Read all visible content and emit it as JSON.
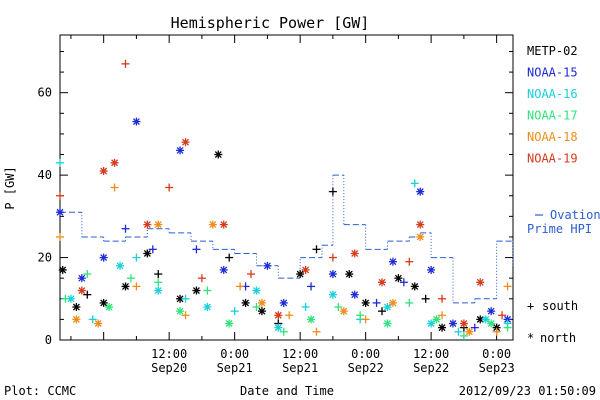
{
  "chart_data": {
    "type": "scatter",
    "title": "Hemispheric Power [GW]",
    "xlabel": "Date and Time",
    "ylabel": "P [GW]",
    "ylim": [
      0,
      74
    ],
    "xlim": [
      "2012-09-19T16:00",
      "2012-09-23T03:00"
    ],
    "yticks": [
      0,
      20,
      40,
      60
    ],
    "xticks": [
      {
        "line1": "12:00",
        "line2": "Sep20",
        "t": "2012-09-20T12:00"
      },
      {
        "line1": "0:00",
        "line2": "Sep21",
        "t": "2012-09-21T00:00"
      },
      {
        "line1": "12:00",
        "line2": "Sep21",
        "t": "2012-09-21T12:00"
      },
      {
        "line1": "0:00",
        "line2": "Sep22",
        "t": "2012-09-22T00:00"
      },
      {
        "line1": "12:00",
        "line2": "Sep22",
        "t": "2012-09-22T12:00"
      },
      {
        "line1": "0:00",
        "line2": "Sep23",
        "t": "2012-09-23T00:00"
      }
    ],
    "grid": false,
    "legend_position": "right",
    "ovation_label_1": "Ovation",
    "ovation_label_2": "Prime HPI",
    "symbol_south_label": "south",
    "symbol_north_label": "north",
    "footer_left": "Plot: CCMC",
    "footer_right": "2012/09/23 01:50:09",
    "series": [
      {
        "name": "METP-02",
        "color": "#000000",
        "points": [
          [
            "2012-09-19T16:30",
            17,
            "n"
          ],
          [
            "2012-09-19T19:00",
            8,
            "n"
          ],
          [
            "2012-09-19T21:00",
            11,
            "s"
          ],
          [
            "2012-09-20T00:00",
            9,
            "n"
          ],
          [
            "2012-09-20T04:00",
            13,
            "n"
          ],
          [
            "2012-09-20T08:00",
            21,
            "n"
          ],
          [
            "2012-09-20T10:00",
            16,
            "s"
          ],
          [
            "2012-09-20T14:00",
            10,
            "n"
          ],
          [
            "2012-09-20T17:00",
            12,
            "n"
          ],
          [
            "2012-09-20T21:00",
            45,
            "n"
          ],
          [
            "2012-09-20T23:00",
            20,
            "s"
          ],
          [
            "2012-09-21T02:00",
            9,
            "n"
          ],
          [
            "2012-09-21T05:00",
            7,
            "n"
          ],
          [
            "2012-09-21T08:00",
            4,
            "s"
          ],
          [
            "2012-09-21T12:00",
            16,
            "n"
          ],
          [
            "2012-09-21T15:00",
            22,
            "s"
          ],
          [
            "2012-09-21T18:00",
            36,
            "s"
          ],
          [
            "2012-09-21T21:00",
            16,
            "n"
          ],
          [
            "2012-09-22T00:00",
            9,
            "n"
          ],
          [
            "2012-09-22T03:00",
            7,
            "s"
          ],
          [
            "2012-09-22T06:00",
            15,
            "n"
          ],
          [
            "2012-09-22T09:00",
            13,
            "n"
          ],
          [
            "2012-09-22T11:00",
            10,
            "s"
          ],
          [
            "2012-09-22T14:00",
            3,
            "n"
          ],
          [
            "2012-09-22T18:00",
            3,
            "s"
          ],
          [
            "2012-09-22T21:00",
            5,
            "n"
          ],
          [
            "2012-09-23T00:00",
            3,
            "n"
          ]
        ]
      },
      {
        "name": "NOAA-15",
        "color": "#1d2bd6",
        "points": [
          [
            "2012-09-19T16:00",
            31,
            "n"
          ],
          [
            "2012-09-19T20:00",
            15,
            "n"
          ],
          [
            "2012-09-20T00:00",
            20,
            "n"
          ],
          [
            "2012-09-20T04:00",
            27,
            "s"
          ],
          [
            "2012-09-20T06:00",
            53,
            "n"
          ],
          [
            "2012-09-20T09:00",
            22,
            "s"
          ],
          [
            "2012-09-20T14:00",
            46,
            "n"
          ],
          [
            "2012-09-20T17:00",
            22,
            "s"
          ],
          [
            "2012-09-20T22:00",
            17,
            "n"
          ],
          [
            "2012-09-21T02:00",
            13,
            "s"
          ],
          [
            "2012-09-21T06:00",
            18,
            "n"
          ],
          [
            "2012-09-21T09:00",
            9,
            "n"
          ],
          [
            "2012-09-21T14:00",
            13,
            "s"
          ],
          [
            "2012-09-21T18:00",
            16,
            "n"
          ],
          [
            "2012-09-21T22:00",
            11,
            "n"
          ],
          [
            "2012-09-22T02:00",
            9,
            "s"
          ],
          [
            "2012-09-22T05:00",
            19,
            "n"
          ],
          [
            "2012-09-22T07:00",
            14,
            "s"
          ],
          [
            "2012-09-22T10:00",
            36,
            "n"
          ],
          [
            "2012-09-22T12:00",
            17,
            "n"
          ],
          [
            "2012-09-22T16:00",
            4,
            "n"
          ],
          [
            "2012-09-22T20:00",
            3,
            "s"
          ],
          [
            "2012-09-22T23:00",
            7,
            "n"
          ],
          [
            "2012-09-23T02:00",
            5,
            "n"
          ]
        ]
      },
      {
        "name": "NOAA-16",
        "color": "#19d0dd",
        "points": [
          [
            "2012-09-19T16:00",
            43,
            "s"
          ],
          [
            "2012-09-19T18:00",
            10,
            "n"
          ],
          [
            "2012-09-19T22:00",
            5,
            "s"
          ],
          [
            "2012-09-20T03:00",
            18,
            "n"
          ],
          [
            "2012-09-20T06:00",
            20,
            "s"
          ],
          [
            "2012-09-20T10:00",
            12,
            "n"
          ],
          [
            "2012-09-20T15:00",
            10,
            "s"
          ],
          [
            "2012-09-20T19:00",
            8,
            "n"
          ],
          [
            "2012-09-21T00:00",
            7,
            "s"
          ],
          [
            "2012-09-21T04:00",
            12,
            "n"
          ],
          [
            "2012-09-21T08:00",
            3,
            "n"
          ],
          [
            "2012-09-21T13:00",
            8,
            "s"
          ],
          [
            "2012-09-21T18:00",
            11,
            "n"
          ],
          [
            "2012-09-21T23:00",
            5,
            "s"
          ],
          [
            "2012-09-22T04:00",
            8,
            "n"
          ],
          [
            "2012-09-22T09:00",
            38,
            "s"
          ],
          [
            "2012-09-22T12:00",
            4,
            "n"
          ],
          [
            "2012-09-22T17:00",
            2,
            "s"
          ],
          [
            "2012-09-22T22:00",
            5,
            "n"
          ],
          [
            "2012-09-23T02:00",
            4,
            "s"
          ]
        ]
      },
      {
        "name": "NOAA-17",
        "color": "#2ee37a",
        "points": [
          [
            "2012-09-19T17:00",
            10,
            "s"
          ],
          [
            "2012-09-19T21:00",
            16,
            "s"
          ],
          [
            "2012-09-20T01:00",
            8,
            "n"
          ],
          [
            "2012-09-20T05:00",
            15,
            "s"
          ],
          [
            "2012-09-20T10:00",
            14,
            "s"
          ],
          [
            "2012-09-20T14:00",
            7,
            "n"
          ],
          [
            "2012-09-20T19:00",
            12,
            "s"
          ],
          [
            "2012-09-20T23:00",
            4,
            "n"
          ],
          [
            "2012-09-21T04:00",
            8,
            "s"
          ],
          [
            "2012-09-21T09:00",
            2,
            "s"
          ],
          [
            "2012-09-21T14:00",
            5,
            "n"
          ],
          [
            "2012-09-21T19:00",
            8,
            "s"
          ],
          [
            "2012-09-21T23:00",
            6,
            "s"
          ],
          [
            "2012-09-22T04:00",
            4,
            "n"
          ],
          [
            "2012-09-22T08:00",
            9,
            "s"
          ],
          [
            "2012-09-22T13:00",
            5,
            "n"
          ],
          [
            "2012-09-22T18:00",
            1,
            "s"
          ],
          [
            "2012-09-22T23:00",
            4,
            "n"
          ],
          [
            "2012-09-23T02:00",
            3,
            "s"
          ]
        ]
      },
      {
        "name": "NOAA-18",
        "color": "#f08c1a",
        "points": [
          [
            "2012-09-19T16:00",
            25,
            "s"
          ],
          [
            "2012-09-19T19:00",
            5,
            "n"
          ],
          [
            "2012-09-19T23:00",
            4,
            "n"
          ],
          [
            "2012-09-20T02:00",
            37,
            "s"
          ],
          [
            "2012-09-20T06:00",
            13,
            "s"
          ],
          [
            "2012-09-20T10:00",
            28,
            "n"
          ],
          [
            "2012-09-20T15:00",
            6,
            "s"
          ],
          [
            "2012-09-20T20:00",
            28,
            "n"
          ],
          [
            "2012-09-21T01:00",
            13,
            "s"
          ],
          [
            "2012-09-21T05:00",
            9,
            "n"
          ],
          [
            "2012-09-21T10:00",
            6,
            "s"
          ],
          [
            "2012-09-21T15:00",
            2,
            "s"
          ],
          [
            "2012-09-21T20:00",
            7,
            "n"
          ],
          [
            "2012-09-22T00:00",
            5,
            "s"
          ],
          [
            "2012-09-22T05:00",
            9,
            "n"
          ],
          [
            "2012-09-22T10:00",
            25,
            "n"
          ],
          [
            "2012-09-22T14:00",
            6,
            "s"
          ],
          [
            "2012-09-22T19:00",
            2,
            "n"
          ],
          [
            "2012-09-23T00:00",
            2,
            "s"
          ],
          [
            "2012-09-23T02:00",
            13,
            "s"
          ]
        ]
      },
      {
        "name": "NOAA-19",
        "color": "#d63a1c",
        "points": [
          [
            "2012-09-19T16:00",
            35,
            "s"
          ],
          [
            "2012-09-19T20:00",
            12,
            "n"
          ],
          [
            "2012-09-20T00:00",
            41,
            "n"
          ],
          [
            "2012-09-20T02:00",
            43,
            "n"
          ],
          [
            "2012-09-20T04:00",
            67,
            "s"
          ],
          [
            "2012-09-20T08:00",
            28,
            "n"
          ],
          [
            "2012-09-20T12:00",
            37,
            "s"
          ],
          [
            "2012-09-20T15:00",
            48,
            "n"
          ],
          [
            "2012-09-20T18:00",
            15,
            "s"
          ],
          [
            "2012-09-20T22:00",
            28,
            "n"
          ],
          [
            "2012-09-21T03:00",
            16,
            "s"
          ],
          [
            "2012-09-21T08:00",
            6,
            "n"
          ],
          [
            "2012-09-21T13:00",
            17,
            "n"
          ],
          [
            "2012-09-21T18:00",
            20,
            "s"
          ],
          [
            "2012-09-21T22:00",
            21,
            "n"
          ],
          [
            "2012-09-22T03:00",
            14,
            "n"
          ],
          [
            "2012-09-22T08:00",
            19,
            "s"
          ],
          [
            "2012-09-22T10:00",
            28,
            "n"
          ],
          [
            "2012-09-22T14:00",
            10,
            "s"
          ],
          [
            "2012-09-22T18:00",
            4,
            "n"
          ],
          [
            "2012-09-22T21:00",
            14,
            "n"
          ],
          [
            "2012-09-23T01:00",
            6,
            "s"
          ]
        ]
      }
    ],
    "ovation": {
      "name": "Ovation Prime HPI",
      "color": "#2a5fd0",
      "points": [
        [
          "2012-09-19T16:00",
          31
        ],
        [
          "2012-09-19T20:00",
          25
        ],
        [
          "2012-09-20T00:00",
          24
        ],
        [
          "2012-09-20T04:00",
          25
        ],
        [
          "2012-09-20T08:00",
          27
        ],
        [
          "2012-09-20T12:00",
          26
        ],
        [
          "2012-09-20T16:00",
          24
        ],
        [
          "2012-09-20T20:00",
          22
        ],
        [
          "2012-09-21T00:00",
          21
        ],
        [
          "2012-09-21T04:00",
          18
        ],
        [
          "2012-09-21T08:00",
          15
        ],
        [
          "2012-09-21T12:00",
          20
        ],
        [
          "2012-09-21T16:00",
          23
        ],
        [
          "2012-09-21T18:00",
          40
        ],
        [
          "2012-09-21T20:00",
          28
        ],
        [
          "2012-09-22T00:00",
          22
        ],
        [
          "2012-09-22T04:00",
          24
        ],
        [
          "2012-09-22T08:00",
          25
        ],
        [
          "2012-09-22T10:00",
          26
        ],
        [
          "2012-09-22T12:00",
          20
        ],
        [
          "2012-09-22T16:00",
          9
        ],
        [
          "2012-09-22T20:00",
          10
        ],
        [
          "2012-09-23T00:00",
          24
        ],
        [
          "2012-09-23T03:00",
          18
        ]
      ]
    }
  }
}
